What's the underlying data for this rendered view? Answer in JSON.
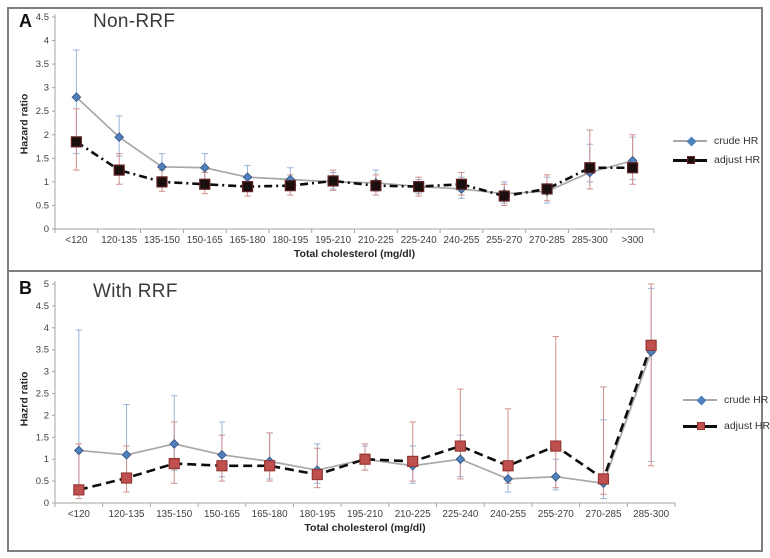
{
  "chart_data": [
    {
      "type": "line",
      "panel_letter": "A",
      "title": "Non-RRF",
      "ylabel": "Hazard  ratio",
      "xlabel": "Total cholesterol (mg/dl)",
      "ylim": [
        0,
        4.5
      ],
      "ytick_step": 0.5,
      "grid": false,
      "legend_position": "right",
      "categories": [
        "<120",
        "120-135",
        "135-150",
        "150-165",
        "165-180",
        "180-195",
        "195-210",
        "210-225",
        "225-240",
        "240-255",
        "255-270",
        "270-285",
        "285-300",
        ">300"
      ],
      "series": [
        {
          "name": "crude HR",
          "marker": "diamond",
          "line_color": "#a8a8a8",
          "line_dash": "",
          "marker_color": "#4f81bd",
          "marker_stroke": "#35507f",
          "error_color": "#98b4d8",
          "values": [
            2.8,
            1.95,
            1.32,
            1.3,
            1.1,
            1.05,
            1.0,
            0.98,
            0.9,
            0.85,
            0.75,
            0.8,
            1.2,
            1.45
          ],
          "ci_low": [
            1.6,
            1.55,
            1.05,
            1.05,
            0.9,
            0.85,
            0.85,
            0.8,
            0.75,
            0.65,
            0.55,
            0.55,
            1.0,
            1.05
          ],
          "ci_high": [
            3.8,
            2.4,
            1.6,
            1.6,
            1.35,
            1.3,
            1.2,
            1.25,
            1.05,
            1.1,
            1.0,
            1.1,
            1.8,
            1.95
          ]
        },
        {
          "name": "adjust HR",
          "marker": "square",
          "line_color": "#0d0d0d",
          "line_dash": "8 4 2 4",
          "marker_color": "#1a0e0e",
          "marker_stroke": "#632423",
          "error_color": "#cf8f8d",
          "values": [
            1.85,
            1.25,
            1.0,
            0.95,
            0.9,
            0.92,
            1.02,
            0.92,
            0.9,
            0.95,
            0.7,
            0.85,
            1.3,
            1.3
          ],
          "ci_low": [
            1.25,
            0.95,
            0.8,
            0.75,
            0.7,
            0.72,
            0.82,
            0.72,
            0.7,
            0.72,
            0.5,
            0.6,
            0.85,
            0.95
          ],
          "ci_high": [
            2.55,
            1.6,
            1.25,
            1.2,
            1.1,
            1.15,
            1.25,
            1.15,
            1.1,
            1.2,
            0.95,
            1.15,
            2.1,
            2.0
          ]
        }
      ]
    },
    {
      "type": "line",
      "panel_letter": "B",
      "title": "With RRF",
      "ylabel": "Hazrd ratio",
      "xlabel": "Total cholesterol (mg/dl)",
      "ylim": [
        0,
        5
      ],
      "ytick_step": 0.5,
      "grid": false,
      "legend_position": "right",
      "categories": [
        "<120",
        "120-135",
        "135-150",
        "150-165",
        "165-180",
        "180-195",
        "195-210",
        "210-225",
        "225-240",
        "240-255",
        "255-270",
        "270-285",
        "285-300"
      ],
      "series": [
        {
          "name": "crude HR",
          "marker": "diamond",
          "line_color": "#a8a8a8",
          "line_dash": "",
          "marker_color": "#4f81bd",
          "marker_stroke": "#35507f",
          "error_color": "#98b4d8",
          "values": [
            1.2,
            1.1,
            1.35,
            1.1,
            0.95,
            0.75,
            1.0,
            0.85,
            1.0,
            0.55,
            0.6,
            0.45,
            3.45
          ],
          "ci_low": [
            0.4,
            0.55,
            0.75,
            0.6,
            0.55,
            0.45,
            0.75,
            0.45,
            0.6,
            0.25,
            0.3,
            0.1,
            0.95
          ],
          "ci_high": [
            3.95,
            2.25,
            2.45,
            1.85,
            1.6,
            1.35,
            1.3,
            1.3,
            1.55,
            0.9,
            1.0,
            1.9,
            4.9
          ]
        },
        {
          "name": "adjust HR",
          "marker": "square",
          "line_color": "#0d0d0d",
          "line_dash": "9 5",
          "marker_color": "#c0504d",
          "marker_stroke": "#943634",
          "error_color": "#cf8f8d",
          "values": [
            0.3,
            0.57,
            0.9,
            0.85,
            0.85,
            0.65,
            1.0,
            0.95,
            1.3,
            0.85,
            1.3,
            0.55,
            3.6
          ],
          "ci_low": [
            0.1,
            0.25,
            0.45,
            0.5,
            0.5,
            0.35,
            0.75,
            0.5,
            0.55,
            0.45,
            0.35,
            0.2,
            0.85
          ],
          "ci_high": [
            1.35,
            1.3,
            1.85,
            1.55,
            1.6,
            1.25,
            1.35,
            1.85,
            2.6,
            2.15,
            3.8,
            2.65,
            5.0
          ]
        }
      ]
    }
  ]
}
